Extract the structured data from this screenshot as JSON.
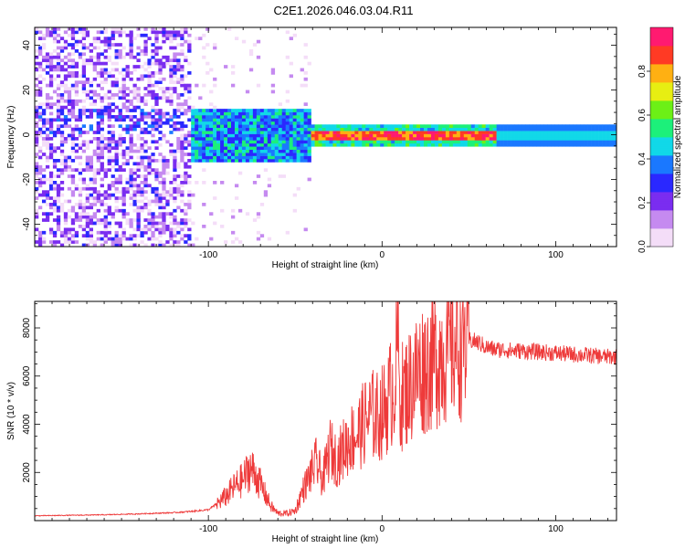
{
  "title": "C2E1.2026.046.03.04.R11",
  "chart_data": [
    {
      "type": "heatmap",
      "xlabel": "Height of straight line (km)",
      "ylabel": "Frequency (Hz)",
      "xlim": [
        -200,
        135
      ],
      "ylim": [
        -50,
        48
      ],
      "xticks": [
        -100,
        0,
        100
      ],
      "yticks": [
        -40,
        -20,
        0,
        20,
        40
      ],
      "colorbar": {
        "label": "Normalized spectral amplitude",
        "range": [
          0.0,
          1.0
        ],
        "ticks": [
          0.0,
          0.2,
          0.4,
          0.6,
          0.8
        ],
        "tick_labels": [
          "0.0",
          "0.2",
          "0.4",
          "0.6",
          "0.8"
        ],
        "colors": [
          "#f4ddf8",
          "#c58af0",
          "#7a2df0",
          "#2a28ff",
          "#1a78ff",
          "#11d8e8",
          "#1cf07a",
          "#6cf016",
          "#e7ee12",
          "#ffb012",
          "#ff3a24",
          "#ff1a70"
        ]
      },
      "regions": [
        {
          "x_range": [
            -200,
            -110
          ],
          "description_level": "noisy",
          "amplitude": 0.2
        },
        {
          "x_range": [
            -110,
            -40
          ],
          "description_level": "mixed",
          "amplitude": 0.45
        },
        {
          "x_range": [
            -40,
            65
          ],
          "description_level": "strong",
          "amplitude": 0.85
        },
        {
          "x_range": [
            65,
            135
          ],
          "description_level": "steady",
          "amplitude": 0.45
        }
      ]
    },
    {
      "type": "line",
      "xlabel": "Height of straight line (km)",
      "ylabel": "SNR (10 * v/v)",
      "xlim": [
        -200,
        135
      ],
      "ylim": [
        0,
        9100
      ],
      "xticks": [
        -100,
        0,
        100
      ],
      "yticks": [
        2000,
        4000,
        6000,
        8000
      ],
      "color": "#ee3a3a",
      "series": [
        {
          "name": "SNR",
          "x": [
            -200,
            -180,
            -160,
            -140,
            -120,
            -110,
            -100,
            -95,
            -90,
            -85,
            -80,
            -76,
            -72,
            -68,
            -64,
            -60,
            -55,
            -50,
            -46,
            -42,
            -38,
            -34,
            -30,
            -26,
            -22,
            -18,
            -14,
            -10,
            -6,
            -2,
            2,
            6,
            8,
            9,
            10,
            12,
            16,
            20,
            25,
            30,
            35,
            40,
            45,
            50,
            55,
            60,
            65,
            70,
            75,
            80,
            90,
            100,
            110,
            120,
            130,
            135
          ],
          "y": [
            200,
            220,
            240,
            280,
            330,
            380,
            450,
            700,
            1000,
            1400,
            1700,
            2200,
            1800,
            1200,
            600,
            300,
            300,
            400,
            1200,
            1800,
            2400,
            1700,
            3000,
            2500,
            3000,
            3400,
            3600,
            4100,
            4400,
            4300,
            4700,
            5500,
            6000,
            8600,
            5200,
            5200,
            5600,
            6100,
            6400,
            6700,
            7000,
            7300,
            7400,
            7500,
            7400,
            7200,
            7100,
            7100,
            7050,
            7050,
            7000,
            6950,
            6900,
            6850,
            6800,
            6800
          ]
        }
      ]
    }
  ]
}
